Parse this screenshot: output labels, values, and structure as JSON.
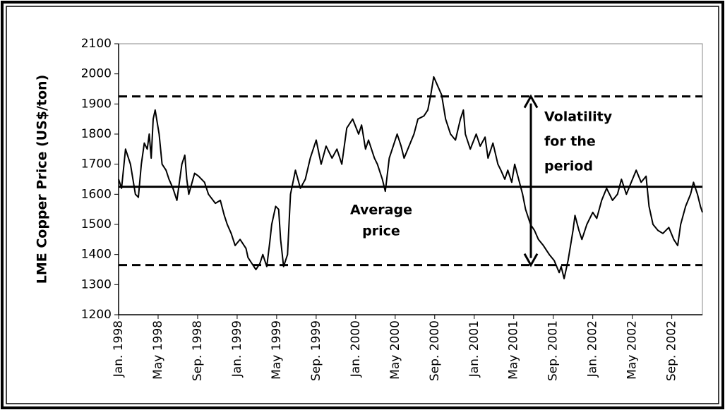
{
  "chart_data": {
    "type": "line",
    "y_label": "LME Copper Price  (US$/ton)",
    "color": "#000000",
    "x": [
      0,
      0.3,
      0.7,
      1.2,
      1.7,
      2,
      2.3,
      2.6,
      2.9,
      3.1,
      3.3,
      3.5,
      3.7,
      4.1,
      4.4,
      4.8,
      5.1,
      5.5,
      5.9,
      6.4,
      6.7,
      6.9,
      7.1,
      7.7,
      8.1,
      8.7,
      9.1,
      9.8,
      10.3,
      10.7,
      11,
      11.4,
      11.8,
      12.3,
      12.9,
      13.1,
      13.5,
      13.9,
      14.3,
      14.6,
      15,
      15.3,
      15.5,
      15.9,
      16.2,
      16.4,
      16.7,
      16.9,
      17.1,
      17.4,
      17.9,
      18.4,
      18.9,
      19.4,
      20,
      20.5,
      21,
      21.6,
      22.1,
      22.6,
      23.1,
      23.7,
      24.3,
      24.6,
      25,
      25.3,
      25.9,
      26.2,
      26.7,
      27,
      27.4,
      27.9,
      28.2,
      28.6,
      28.9,
      29.4,
      29.9,
      30.3,
      30.9,
      31.3,
      31.6,
      31.9,
      32.3,
      32.7,
      33.1,
      33.6,
      34.1,
      34.6,
      34.9,
      35.1,
      35.6,
      36.2,
      36.6,
      37.1,
      37.4,
      37.9,
      38.4,
      38.7,
      39.1,
      39.4,
      39.8,
      40.1,
      40.5,
      40.9,
      41.2,
      41.7,
      42.1,
      42.5,
      43,
      43.6,
      44.1,
      44.6,
      44.8,
      45.1,
      45.5,
      46,
      46.2,
      46.6,
      46.9,
      47.4,
      48,
      48.4,
      48.9,
      49.4,
      50,
      50.5,
      50.9,
      51.4,
      51.9,
      52.4,
      52.9,
      53.4,
      53.7,
      54.1,
      54.6,
      55.1,
      55.7,
      56.2,
      56.6,
      56.9,
      57.4,
      57.9,
      58.2,
      58.6,
      58.9,
      59.1
    ],
    "values": [
      1650,
      1620,
      1750,
      1700,
      1600,
      1590,
      1700,
      1770,
      1750,
      1800,
      1720,
      1850,
      1880,
      1800,
      1700,
      1680,
      1650,
      1620,
      1580,
      1700,
      1730,
      1650,
      1600,
      1670,
      1660,
      1640,
      1600,
      1570,
      1580,
      1530,
      1500,
      1470,
      1430,
      1450,
      1420,
      1390,
      1370,
      1350,
      1370,
      1400,
      1360,
      1440,
      1500,
      1560,
      1550,
      1450,
      1360,
      1380,
      1400,
      1600,
      1680,
      1620,
      1650,
      1720,
      1780,
      1700,
      1760,
      1720,
      1750,
      1700,
      1820,
      1850,
      1800,
      1830,
      1750,
      1780,
      1720,
      1700,
      1650,
      1610,
      1720,
      1770,
      1800,
      1760,
      1720,
      1760,
      1800,
      1850,
      1860,
      1880,
      1930,
      1990,
      1960,
      1930,
      1850,
      1800,
      1780,
      1850,
      1880,
      1800,
      1750,
      1800,
      1760,
      1790,
      1720,
      1770,
      1700,
      1680,
      1650,
      1680,
      1640,
      1700,
      1650,
      1600,
      1550,
      1500,
      1480,
      1450,
      1430,
      1400,
      1380,
      1340,
      1360,
      1320,
      1380,
      1480,
      1530,
      1480,
      1450,
      1500,
      1540,
      1520,
      1580,
      1620,
      1580,
      1600,
      1650,
      1600,
      1640,
      1680,
      1640,
      1660,
      1560,
      1500,
      1480,
      1470,
      1490,
      1450,
      1430,
      1500,
      1560,
      1600,
      1640,
      1600,
      1560,
      1540
    ],
    "xlim": [
      0,
      59.1
    ],
    "xticks": [
      {
        "value": 0,
        "label": "Jan. 1998"
      },
      {
        "value": 4,
        "label": "May 1998"
      },
      {
        "value": 8,
        "label": "Sep. 1998"
      },
      {
        "value": 12,
        "label": "Jan. 1999"
      },
      {
        "value": 16,
        "label": "May 1999"
      },
      {
        "value": 20,
        "label": "Sep. 1999"
      },
      {
        "value": 24,
        "label": "Jan. 2000"
      },
      {
        "value": 28,
        "label": "May 2000"
      },
      {
        "value": 32,
        "label": "Sep. 2000"
      },
      {
        "value": 36,
        "label": "Jan. 2001"
      },
      {
        "value": 40,
        "label": "May 2001"
      },
      {
        "value": 44,
        "label": "Sep. 2001"
      },
      {
        "value": 48,
        "label": "Jan. 2002"
      },
      {
        "value": 52,
        "label": "May 2002"
      },
      {
        "value": 56,
        "label": "Sep. 2002"
      }
    ],
    "ylim": [
      1200,
      2100
    ],
    "yticks": [
      1200,
      1300,
      1400,
      1500,
      1600,
      1700,
      1800,
      1900,
      2000,
      2100
    ],
    "reference_lines": {
      "average": 1625,
      "upper": 1925,
      "lower": 1365
    },
    "average_label": [
      "Average",
      "price"
    ],
    "volatility_label": [
      "Volatility",
      "for the",
      "period"
    ]
  }
}
